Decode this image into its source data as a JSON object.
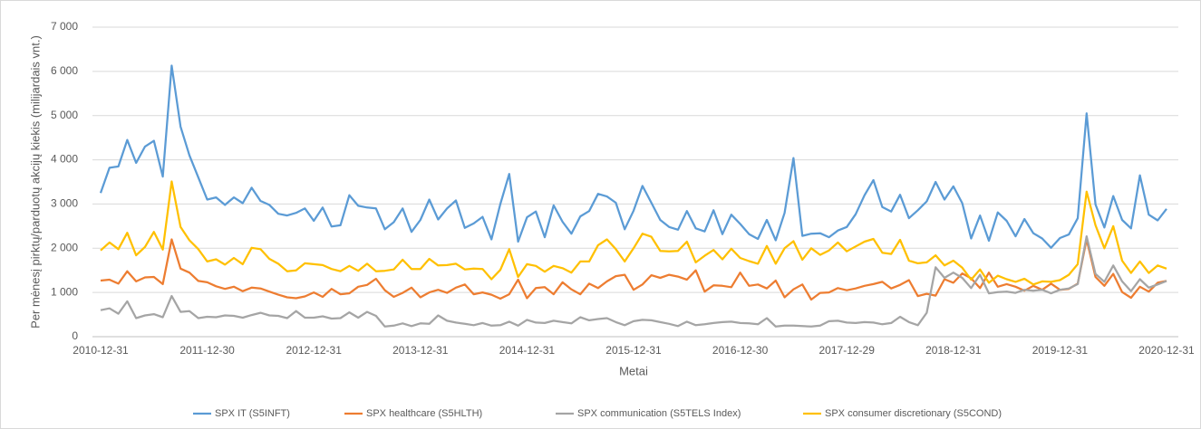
{
  "chart_data": {
    "type": "line",
    "y_label": "Per mėnesį pirktų/parduotų akcijų kiekis (milijardais vnt.)",
    "x_label": "Metai",
    "categories": [
      "2010-12-31",
      null,
      null,
      null,
      null,
      null,
      null,
      null,
      null,
      null,
      null,
      null,
      "2011-12-30",
      null,
      null,
      null,
      null,
      null,
      null,
      null,
      null,
      null,
      null,
      null,
      "2012-12-31",
      null,
      null,
      null,
      null,
      null,
      null,
      null,
      null,
      null,
      null,
      null,
      "2013-12-31",
      null,
      null,
      null,
      null,
      null,
      null,
      null,
      null,
      null,
      null,
      null,
      "2014-12-31",
      null,
      null,
      null,
      null,
      null,
      null,
      null,
      null,
      null,
      null,
      null,
      "2015-12-31",
      null,
      null,
      null,
      null,
      null,
      null,
      null,
      null,
      null,
      null,
      null,
      "2016-12-30",
      null,
      null,
      null,
      null,
      null,
      null,
      null,
      null,
      null,
      null,
      null,
      "2017-12-29",
      null,
      null,
      null,
      null,
      null,
      null,
      null,
      null,
      null,
      null,
      null,
      "2018-12-31",
      null,
      null,
      null,
      null,
      null,
      null,
      null,
      null,
      null,
      null,
      null,
      "2019-12-31",
      null,
      null,
      null,
      null,
      null,
      null,
      null,
      null,
      null,
      null,
      null,
      "2020-12-31"
    ],
    "series": [
      {
        "name": "SPX IT (S5INFT)",
        "color": "#5b9bd5",
        "values": [
          3250,
          3820,
          3850,
          4450,
          3930,
          4300,
          4430,
          3620,
          6130,
          4750,
          4100,
          3600,
          3100,
          3150,
          2980,
          3150,
          3020,
          3370,
          3070,
          2980,
          2780,
          2740,
          2800,
          2900,
          2620,
          2920,
          2490,
          2520,
          3200,
          2960,
          2920,
          2900,
          2430,
          2590,
          2900,
          2370,
          2640,
          3100,
          2650,
          2900,
          3080,
          2460,
          2560,
          2710,
          2200,
          3000,
          3680,
          2150,
          2700,
          2830,
          2250,
          2970,
          2600,
          2330,
          2720,
          2840,
          3230,
          3170,
          3030,
          2430,
          2850,
          3410,
          3030,
          2640,
          2480,
          2420,
          2840,
          2450,
          2380,
          2860,
          2320,
          2760,
          2550,
          2320,
          2210,
          2640,
          2180,
          2800,
          4040,
          2280,
          2330,
          2340,
          2250,
          2400,
          2480,
          2770,
          3200,
          3540,
          2930,
          2830,
          3210,
          2680,
          2860,
          3060,
          3500,
          3100,
          3400,
          3020,
          2220,
          2740,
          2170,
          2810,
          2620,
          2270,
          2660,
          2340,
          2220,
          2010,
          2230,
          2310,
          2680,
          5050,
          2990,
          2470,
          3180,
          2640,
          2450,
          3650,
          2760,
          2630,
          2890
        ]
      },
      {
        "name": "SPX healthcare (S5HLTH)",
        "color": "#ed7d31",
        "values": [
          1270,
          1290,
          1200,
          1480,
          1250,
          1340,
          1350,
          1190,
          2200,
          1540,
          1450,
          1260,
          1230,
          1140,
          1080,
          1130,
          1030,
          1110,
          1090,
          1020,
          950,
          890,
          870,
          910,
          1000,
          900,
          1080,
          960,
          980,
          1130,
          1170,
          1310,
          1050,
          900,
          990,
          1110,
          890,
          1000,
          1060,
          990,
          1110,
          1180,
          960,
          1000,
          950,
          860,
          960,
          1290,
          870,
          1100,
          1120,
          960,
          1230,
          1070,
          960,
          1200,
          1100,
          1250,
          1370,
          1400,
          1060,
          1180,
          1390,
          1330,
          1400,
          1360,
          1290,
          1500,
          1020,
          1160,
          1150,
          1120,
          1450,
          1150,
          1180,
          1090,
          1270,
          890,
          1070,
          1180,
          840,
          990,
          1000,
          1100,
          1050,
          1090,
          1150,
          1190,
          1240,
          1090,
          1170,
          1280,
          920,
          970,
          930,
          1300,
          1220,
          1430,
          1320,
          1100,
          1450,
          1130,
          1190,
          1130,
          1040,
          1150,
          1060,
          1200,
          1060,
          1080,
          1200,
          2200,
          1350,
          1150,
          1420,
          1010,
          880,
          1130,
          1020,
          1220,
          1260
        ]
      },
      {
        "name": "SPX communication (S5TELS Index)",
        "color": "#a5a5a5",
        "values": [
          600,
          640,
          520,
          800,
          420,
          480,
          510,
          440,
          920,
          560,
          580,
          420,
          450,
          440,
          480,
          470,
          430,
          490,
          540,
          480,
          470,
          420,
          580,
          430,
          430,
          460,
          410,
          420,
          550,
          430,
          560,
          470,
          230,
          250,
          300,
          240,
          300,
          290,
          480,
          360,
          320,
          290,
          260,
          310,
          250,
          260,
          340,
          250,
          380,
          320,
          310,
          360,
          330,
          300,
          440,
          370,
          400,
          420,
          330,
          260,
          350,
          380,
          370,
          330,
          290,
          240,
          340,
          260,
          280,
          310,
          330,
          340,
          310,
          300,
          280,
          420,
          230,
          250,
          250,
          240,
          230,
          250,
          350,
          360,
          320,
          310,
          330,
          320,
          280,
          310,
          450,
          330,
          260,
          540,
          1570,
          1330,
          1450,
          1330,
          1100,
          1400,
          980,
          1010,
          1020,
          990,
          1060,
          1040,
          1060,
          980,
          1060,
          1090,
          1190,
          2270,
          1420,
          1240,
          1610,
          1250,
          1030,
          1300,
          1110,
          1180,
          1260
        ]
      },
      {
        "name": "SPX consumer discretionary (S5COND)",
        "color": "#ffc000",
        "values": [
          1950,
          2130,
          1980,
          2350,
          1840,
          2030,
          2370,
          1970,
          3510,
          2480,
          2180,
          1980,
          1700,
          1750,
          1630,
          1780,
          1640,
          2010,
          1980,
          1760,
          1650,
          1480,
          1500,
          1660,
          1640,
          1620,
          1530,
          1480,
          1600,
          1490,
          1650,
          1480,
          1490,
          1520,
          1740,
          1530,
          1530,
          1760,
          1610,
          1620,
          1650,
          1520,
          1540,
          1530,
          1300,
          1510,
          1980,
          1350,
          1640,
          1600,
          1470,
          1600,
          1550,
          1450,
          1700,
          1700,
          2070,
          2200,
          1980,
          1700,
          2000,
          2330,
          2260,
          1940,
          1930,
          1940,
          2150,
          1680,
          1830,
          1960,
          1750,
          1990,
          1780,
          1710,
          1650,
          2050,
          1650,
          2000,
          2160,
          1740,
          2000,
          1850,
          1950,
          2130,
          1930,
          2040,
          2150,
          2210,
          1900,
          1870,
          2190,
          1720,
          1660,
          1680,
          1840,
          1610,
          1720,
          1560,
          1290,
          1520,
          1220,
          1380,
          1300,
          1240,
          1310,
          1180,
          1250,
          1240,
          1280,
          1400,
          1640,
          3280,
          2520,
          2000,
          2500,
          1720,
          1440,
          1700,
          1440,
          1610,
          1540
        ]
      }
    ],
    "ylim": [
      0,
      7000
    ],
    "yticks": [
      0,
      {
        "value": 1000,
        "label": "1 000"
      },
      {
        "value": 2000,
        "label": "2 000"
      },
      {
        "value": 3000,
        "label": "3 000"
      },
      {
        "value": 4000,
        "label": "4 000"
      },
      {
        "value": 5000,
        "label": "5 000"
      },
      {
        "value": 6000,
        "label": "6 000"
      },
      {
        "value": 7000,
        "label": "7 000"
      }
    ],
    "grid": true,
    "legend": "bottom"
  }
}
